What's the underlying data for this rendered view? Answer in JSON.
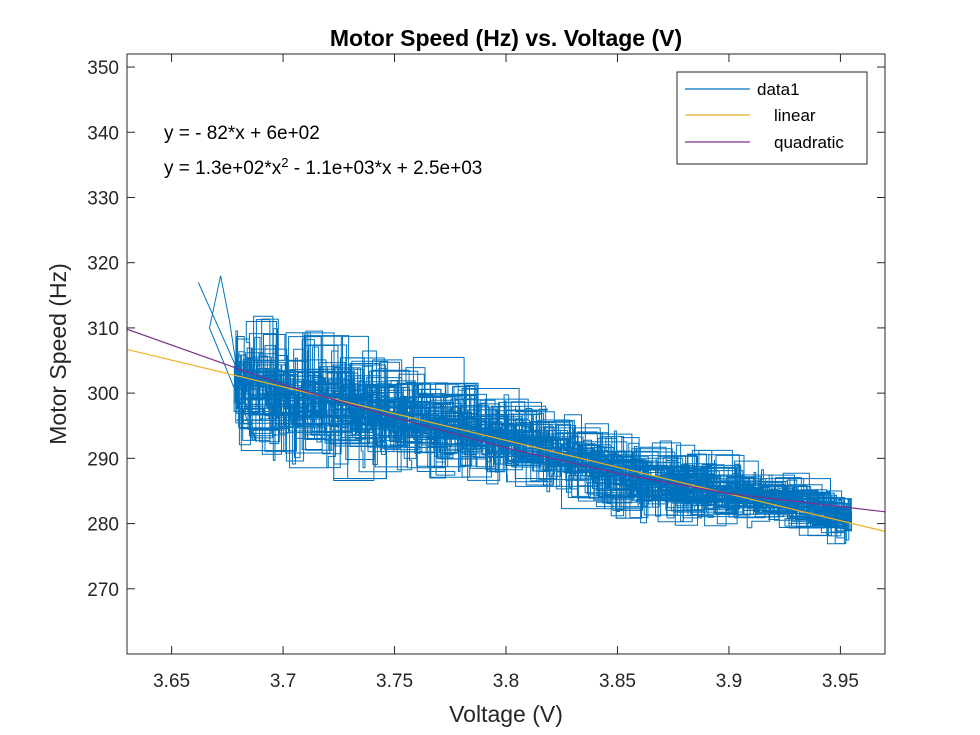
{
  "chart_data": {
    "type": "line",
    "title": "Motor Speed (Hz) vs. Voltage (V)",
    "xlabel": "Voltage (V)",
    "ylabel": "Motor Speed (Hz)",
    "xlim": [
      3.63,
      3.97
    ],
    "ylim": [
      260,
      352
    ],
    "xticks": [
      3.65,
      3.7,
      3.75,
      3.8,
      3.85,
      3.9,
      3.95
    ],
    "xtick_labels": [
      "3.65",
      "3.7",
      "3.75",
      "3.8",
      "3.85",
      "3.9",
      "3.95"
    ],
    "yticks": [
      270,
      280,
      290,
      300,
      310,
      320,
      330,
      340,
      350
    ],
    "ytick_labels": [
      "270",
      "280",
      "290",
      "300",
      "310",
      "320",
      "330",
      "340",
      "350"
    ],
    "grid": false,
    "legend_position": "top-right",
    "annotations": [
      {
        "parts": [
          {
            "text": "y = - 82*x + 6e+02"
          }
        ]
      },
      {
        "parts": [
          {
            "text": "y = 1.3e+02*x"
          },
          {
            "text": "2",
            "sup": true
          },
          {
            "text": " - 1.1e+03*x + 2.5e+03"
          }
        ]
      }
    ],
    "series": [
      {
        "name": "data1",
        "color": "#0072BD",
        "style": "noisy-trace",
        "x_range": [
          3.662,
          3.955
        ],
        "envelope": [
          {
            "x": 3.68,
            "low": 292,
            "high": 313
          },
          {
            "x": 3.7,
            "low": 288,
            "high": 309
          },
          {
            "x": 3.72,
            "low": 287,
            "high": 309
          },
          {
            "x": 3.74,
            "low": 287,
            "high": 307
          },
          {
            "x": 3.76,
            "low": 288,
            "high": 305
          },
          {
            "x": 3.78,
            "low": 287,
            "high": 302
          },
          {
            "x": 3.8,
            "low": 286,
            "high": 300
          },
          {
            "x": 3.82,
            "low": 285,
            "high": 298
          },
          {
            "x": 3.84,
            "low": 283,
            "high": 295
          },
          {
            "x": 3.86,
            "low": 280,
            "high": 293
          },
          {
            "x": 3.88,
            "low": 280,
            "high": 292
          },
          {
            "x": 3.9,
            "low": 279,
            "high": 290
          },
          {
            "x": 3.92,
            "low": 280,
            "high": 288
          },
          {
            "x": 3.94,
            "low": 279,
            "high": 286
          },
          {
            "x": 3.955,
            "low": 276,
            "high": 284
          }
        ],
        "notable_points": [
          {
            "x": 3.662,
            "y": 317
          },
          {
            "x": 3.672,
            "y": 318
          },
          {
            "x": 3.688,
            "y": 292.5
          },
          {
            "x": 3.955,
            "y": 282
          }
        ]
      },
      {
        "name": "linear",
        "color": "#EDB120",
        "fit": "linear",
        "x": [
          3.63,
          3.97
        ],
        "y": [
          306.7,
          278.8
        ]
      },
      {
        "name": "quadratic",
        "color": "#7E2F8E",
        "fit": "quadratic",
        "x": [
          3.63,
          3.7,
          3.75,
          3.8,
          3.85,
          3.9,
          3.97
        ],
        "y": [
          309.8,
          301.3,
          296.3,
          291.6,
          287.7,
          284.6,
          281.8
        ]
      }
    ]
  }
}
